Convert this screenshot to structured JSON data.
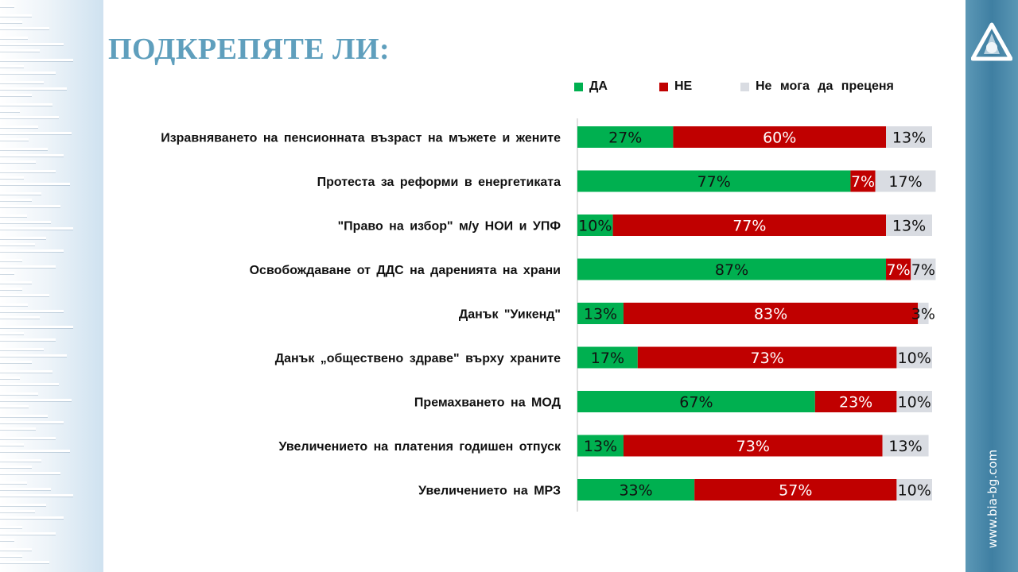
{
  "title": "ПОДКРЕПЯТЕ ЛИ:",
  "site_url": "www.bia-bg.com",
  "colors": {
    "da": "#00b050",
    "ne": "#c00000",
    "unsure": "#d9dce2",
    "title": "#5f9fbd"
  },
  "logo_icon": "bia-triangle-logo-icon",
  "chart_data": {
    "type": "bar",
    "orientation": "horizontal",
    "stacked": "percent",
    "legend_position": "top",
    "grid": false,
    "xlim": [
      0,
      100
    ],
    "categories": [
      "Изравняването на пенсионната възраст на мъжете и жените",
      "Протеста за реформи в енергетиката",
      "\"Право на избор\" м/у НОИ и УПФ",
      "Освобождаване от ДДС на даренията на храни",
      "Данък \"Уикенд\"",
      "Данък „обществено здраве\" върху храните",
      "Премахването на МОД",
      "Увеличението на платения годишен отпуск",
      "Увеличението на МРЗ"
    ],
    "series": [
      {
        "name": "ДА",
        "values": [
          27,
          77,
          10,
          87,
          13,
          17,
          67,
          13,
          33
        ]
      },
      {
        "name": "НЕ",
        "values": [
          60,
          7,
          77,
          7,
          83,
          73,
          23,
          73,
          57
        ]
      },
      {
        "name": "Не мога да преценя",
        "values": [
          13,
          17,
          13,
          7,
          3,
          10,
          10,
          13,
          10
        ]
      }
    ],
    "value_suffix": "%"
  }
}
